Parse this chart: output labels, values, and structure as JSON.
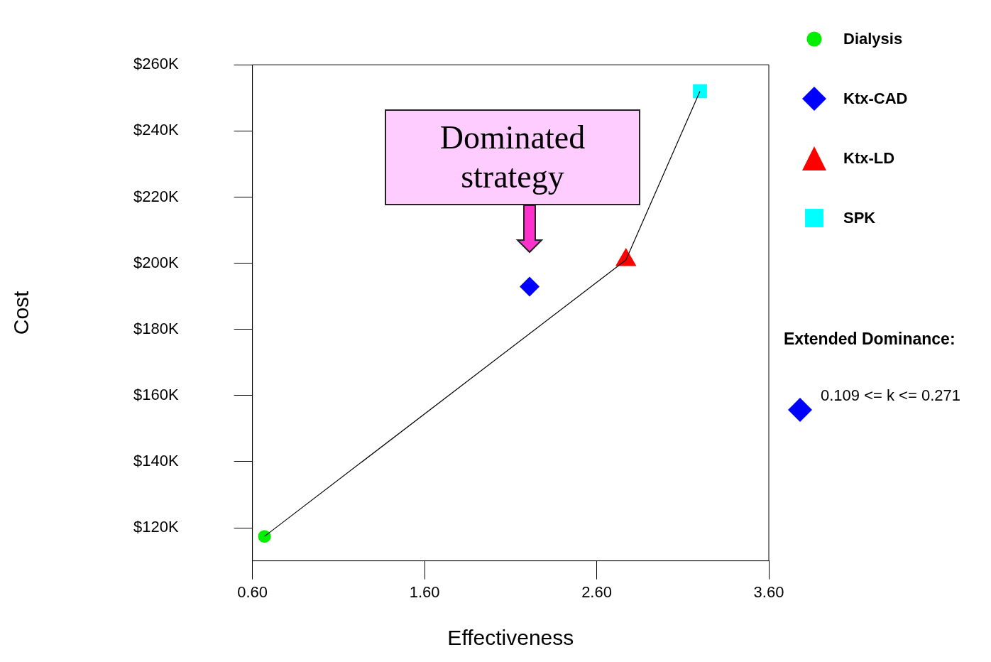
{
  "chart_data": {
    "type": "scatter",
    "xlabel": "Effectiveness",
    "ylabel": "Cost",
    "xlim": [
      0.6,
      3.6
    ],
    "xticks": [
      {
        "value": 0.6,
        "label": "0.60"
      },
      {
        "value": 1.6,
        "label": "1.60"
      },
      {
        "value": 2.6,
        "label": "2.60"
      },
      {
        "value": 3.6,
        "label": "3.60"
      }
    ],
    "ylim": [
      110000,
      260000
    ],
    "yticks": [
      {
        "value": 120000,
        "label": "$120K"
      },
      {
        "value": 140000,
        "label": "$140K"
      },
      {
        "value": 160000,
        "label": "$160K"
      },
      {
        "value": 180000,
        "label": "$180K"
      },
      {
        "value": 200000,
        "label": "$200K"
      },
      {
        "value": 220000,
        "label": "$220K"
      },
      {
        "value": 240000,
        "label": "$240K"
      },
      {
        "value": 260000,
        "label": "$260K"
      }
    ],
    "grid": false,
    "legend": "right",
    "series": [
      {
        "type": "line",
        "color": "#000000",
        "marker": "none",
        "x": [
          0.67,
          2.77,
          3.2
        ],
        "values": [
          117400,
          201000,
          252000
        ]
      },
      {
        "name": "Dialysis",
        "color": "#00ee00",
        "marker": "circle",
        "x": [
          0.67
        ],
        "values": [
          117400
        ]
      },
      {
        "name": "Ktx-CAD",
        "color": "#0000ff",
        "marker": "diamond",
        "x": [
          2.21
        ],
        "values": [
          192900
        ]
      },
      {
        "name": "Ktx-LD",
        "color": "#ff0000",
        "marker": "triangle",
        "x": [
          2.77
        ],
        "values": [
          201000
        ]
      },
      {
        "name": "SPK",
        "color": "#00ffff",
        "marker": "square",
        "x": [
          3.2
        ],
        "values": [
          252000
        ]
      }
    ],
    "annotations": [
      {
        "text": "Dominated strategy",
        "x": 2.21,
        "y": 192900
      },
      "Extended Dominance:",
      "0.109 <= k <= 0.271"
    ]
  }
}
